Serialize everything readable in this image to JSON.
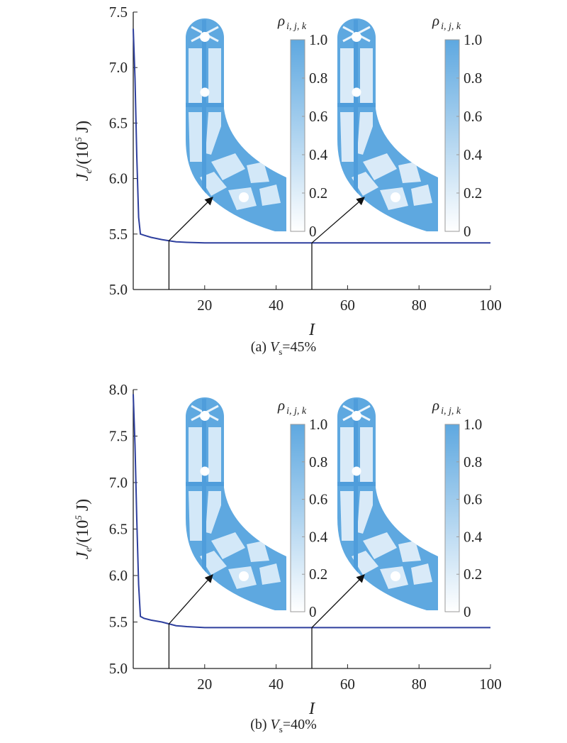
{
  "chart_data": [
    {
      "type": "line",
      "panel_caption": "(a) Vs=45%",
      "caption_prefix": "(a) ",
      "caption_var": "V",
      "caption_sub": "s",
      "caption_rest": "=45%",
      "xlabel": "I",
      "ylabel_main": "J",
      "ylabel_sub": "e",
      "ylabel_rest": "/(10",
      "ylabel_sup": "5",
      "ylabel_unit": " J)",
      "xlim": [
        0,
        100
      ],
      "ylim": [
        5.0,
        7.5
      ],
      "xticks": [
        20,
        40,
        60,
        80,
        100
      ],
      "yticks": [
        "5.0",
        "5.5",
        "6.0",
        "6.5",
        "7.0",
        "7.5"
      ],
      "series": [
        {
          "color": "#2e3f9e",
          "x": [
            0,
            0.5,
            1,
            1.5,
            2,
            3,
            5,
            8,
            10,
            12,
            15,
            20,
            30,
            50,
            70,
            100
          ],
          "y": [
            7.35,
            6.9,
            6.2,
            5.65,
            5.5,
            5.49,
            5.47,
            5.45,
            5.44,
            5.43,
            5.425,
            5.42,
            5.42,
            5.42,
            5.42,
            5.42
          ]
        }
      ],
      "annotations": [
        {
          "x": 10,
          "y": 5.44,
          "target": "inset-1"
        },
        {
          "x": 50,
          "y": 5.42,
          "target": "inset-2"
        }
      ],
      "colorbar": {
        "title": "ρi, j, k",
        "title_main": "ρ",
        "title_sub": "i, j, k",
        "ticks": [
          "0",
          "0.2",
          "0.4",
          "0.6",
          "0.8",
          "1.0"
        ],
        "color_low": "#ffffff",
        "color_high": "#5ea8e0"
      }
    },
    {
      "type": "line",
      "panel_caption": "(b) Vs=40%",
      "caption_prefix": "(b) ",
      "caption_var": "V",
      "caption_sub": "s",
      "caption_rest": "=40%",
      "xlabel": "I",
      "ylabel_main": "J",
      "ylabel_sub": "e",
      "ylabel_rest": "/(10",
      "ylabel_sup": "5",
      "ylabel_unit": " J)",
      "xlim": [
        0,
        100
      ],
      "ylim": [
        5.0,
        8.0
      ],
      "xticks": [
        20,
        40,
        60,
        80,
        100
      ],
      "yticks": [
        "5.0",
        "5.5",
        "6.0",
        "6.5",
        "7.0",
        "7.5",
        "8.0"
      ],
      "series": [
        {
          "color": "#2e3f9e",
          "x": [
            0,
            0.5,
            1,
            1.5,
            2,
            3,
            5,
            8,
            10,
            12,
            15,
            20,
            30,
            50,
            70,
            100
          ],
          "y": [
            7.95,
            7.4,
            6.6,
            5.9,
            5.56,
            5.54,
            5.52,
            5.5,
            5.48,
            5.46,
            5.45,
            5.44,
            5.44,
            5.44,
            5.44,
            5.44
          ]
        }
      ],
      "annotations": [
        {
          "x": 10,
          "y": 5.48,
          "target": "inset-1"
        },
        {
          "x": 50,
          "y": 5.44,
          "target": "inset-2"
        }
      ],
      "colorbar": {
        "title": "ρi, j, k",
        "title_main": "ρ",
        "title_sub": "i, j, k",
        "ticks": [
          "0",
          "0.2",
          "0.4",
          "0.6",
          "0.8",
          "1.0"
        ],
        "color_low": "#ffffff",
        "color_high": "#5ea8e0"
      }
    }
  ]
}
